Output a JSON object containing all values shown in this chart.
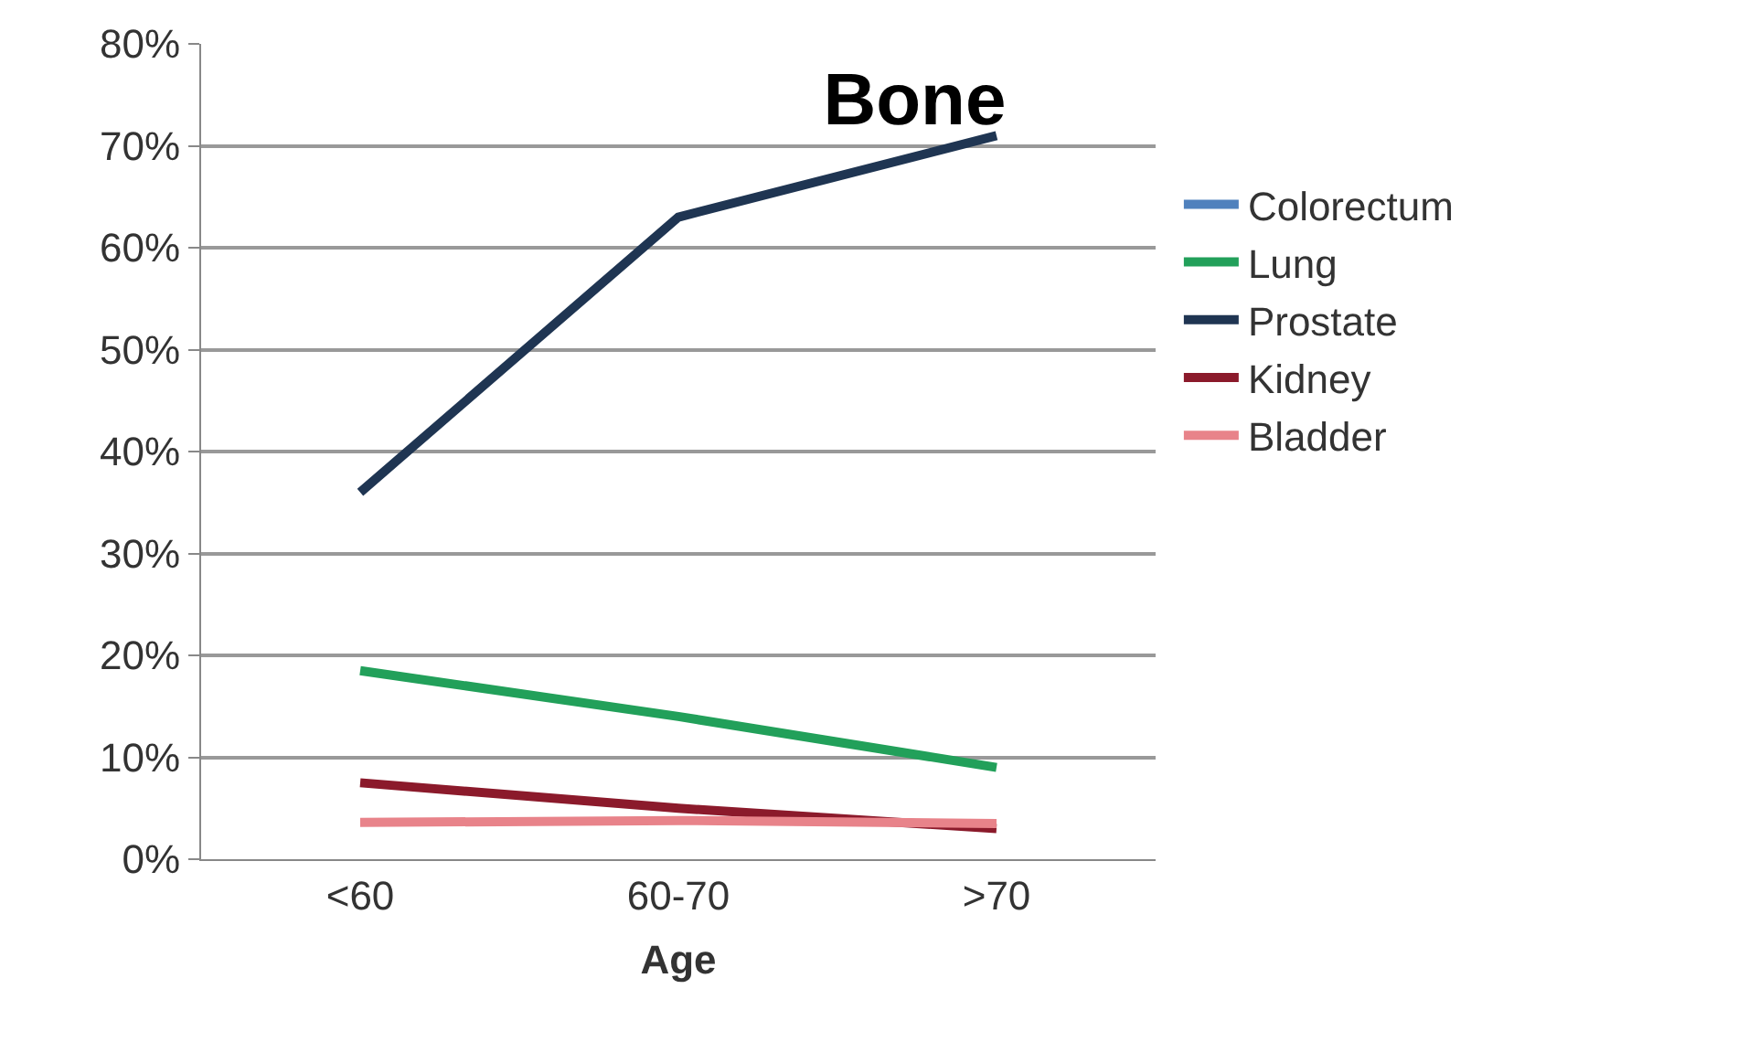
{
  "chart_data": {
    "type": "line",
    "title": "Bone",
    "xlabel": "Age",
    "categories": [
      "<60",
      "60-70",
      ">70"
    ],
    "series": [
      {
        "name": "Colorectum",
        "color": "#4f81bd",
        "values": [
          null,
          null,
          null
        ]
      },
      {
        "name": "Lung",
        "color": "#22a05a",
        "values": [
          18.5,
          14,
          9
        ]
      },
      {
        "name": "Prostate",
        "color": "#1f3552",
        "values": [
          36,
          63,
          71
        ]
      },
      {
        "name": "Kidney",
        "color": "#8b1a2b",
        "values": [
          7.5,
          5,
          3
        ]
      },
      {
        "name": "Bladder",
        "color": "#e8838a",
        "values": [
          3.6,
          3.8,
          3.5
        ]
      }
    ],
    "ylim": [
      0,
      80
    ],
    "yticks": [
      {
        "value": 0,
        "label": "0%"
      },
      {
        "value": 10,
        "label": "10%"
      },
      {
        "value": 20,
        "label": "20%"
      },
      {
        "value": 30,
        "label": "30%"
      },
      {
        "value": 40,
        "label": "40%"
      },
      {
        "value": 50,
        "label": "50%"
      },
      {
        "value": 60,
        "label": "60%"
      },
      {
        "value": 70,
        "label": "70%"
      },
      {
        "value": 80,
        "label": "80%"
      }
    ],
    "grid": "y",
    "legend": "right",
    "marker": "none",
    "line_style": "solid"
  }
}
